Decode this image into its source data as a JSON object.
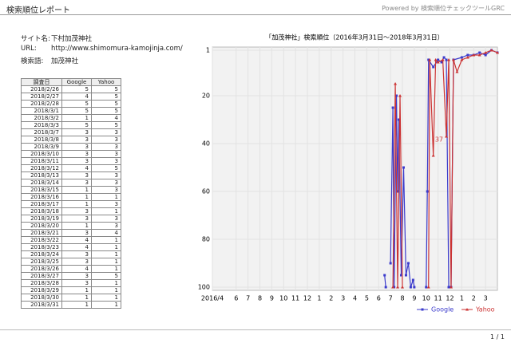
{
  "header": {
    "title": "検索順位レポート",
    "powered": "Powered by 検索順位チェックツールGRC"
  },
  "info": [
    [
      "サイト名:",
      "下村加茂神社"
    ],
    [
      "URL:",
      "http://www.shimomura-kamojinja.com/"
    ],
    [
      "検索語:",
      "加茂神社"
    ]
  ],
  "table": {
    "header": [
      "調査日",
      "Google",
      "Yahoo"
    ],
    "rows": [
      [
        "2018/2/26",
        5,
        5
      ],
      [
        "2018/2/27",
        4,
        5
      ],
      [
        "2018/2/28",
        5,
        5
      ],
      [
        "2018/3/1",
        5,
        5
      ],
      [
        "2018/3/2",
        1,
        4
      ],
      [
        "2018/3/3",
        5,
        5
      ],
      [
        "2018/3/7",
        3,
        3
      ],
      [
        "2018/3/8",
        3,
        3
      ],
      [
        "2018/3/9",
        3,
        3
      ],
      [
        "2018/3/10",
        3,
        3
      ],
      [
        "2018/3/11",
        3,
        3
      ],
      [
        "2018/3/12",
        4,
        5
      ],
      [
        "2018/3/13",
        3,
        3
      ],
      [
        "2018/3/14",
        3,
        3
      ],
      [
        "2018/3/15",
        1,
        3
      ],
      [
        "2018/3/16",
        1,
        1
      ],
      [
        "2018/3/17",
        1,
        3
      ],
      [
        "2018/3/18",
        3,
        1
      ],
      [
        "2018/3/19",
        3,
        3
      ],
      [
        "2018/3/20",
        1,
        3
      ],
      [
        "2018/3/21",
        3,
        4
      ],
      [
        "2018/3/22",
        4,
        1
      ],
      [
        "2018/3/23",
        4,
        1
      ],
      [
        "2018/3/24",
        3,
        1
      ],
      [
        "2018/3/25",
        3,
        1
      ],
      [
        "2018/3/26",
        4,
        1
      ],
      [
        "2018/3/27",
        3,
        5
      ],
      [
        "2018/3/28",
        3,
        1
      ],
      [
        "2018/3/29",
        1,
        1
      ],
      [
        "2018/3/30",
        1,
        1
      ],
      [
        "2018/3/31",
        1,
        1
      ]
    ]
  },
  "chart_data": {
    "type": "line",
    "title": "「加茂神社」検索順位（2016年3月31日～2018年3月31日）",
    "xlim": [
      0,
      24
    ],
    "ylim": [
      100,
      1
    ],
    "grid": true,
    "xticks": [
      {
        "value": 0,
        "label": "2016/4"
      },
      {
        "value": 2,
        "label": "6"
      },
      {
        "value": 3,
        "label": "7"
      },
      {
        "value": 4,
        "label": "8"
      },
      {
        "value": 5,
        "label": "9"
      },
      {
        "value": 6,
        "label": "10"
      },
      {
        "value": 7,
        "label": "11"
      },
      {
        "value": 8,
        "label": "12"
      },
      {
        "value": 9,
        "label": "1"
      },
      {
        "value": 10,
        "label": "2"
      },
      {
        "value": 11,
        "label": "3"
      },
      {
        "value": 12,
        "label": "4"
      },
      {
        "value": 13,
        "label": "5"
      },
      {
        "value": 14,
        "label": "6"
      },
      {
        "value": 15,
        "label": "7"
      },
      {
        "value": 16,
        "label": "8"
      },
      {
        "value": 17,
        "label": "9"
      },
      {
        "value": 18,
        "label": "10"
      },
      {
        "value": 19,
        "label": "11"
      },
      {
        "value": 20,
        "label": "12"
      },
      {
        "value": 21,
        "label": "1"
      },
      {
        "value": 22,
        "label": "2"
      },
      {
        "value": 23,
        "label": "3"
      }
    ],
    "yticks": [
      1,
      20,
      40,
      60,
      80,
      100
    ],
    "series": [
      {
        "name": "Google",
        "color": "#3b3bcc",
        "marker": "square",
        "x": [
          14.5,
          14.6,
          null,
          15.0,
          15.2,
          15.3,
          15.5,
          15.6,
          15.7,
          15.9,
          16.1,
          16.3,
          16.5,
          16.7,
          16.9,
          17.0,
          null,
          18.0,
          18.1,
          18.2,
          18.6,
          19.0,
          19.3,
          19.5,
          19.7,
          19.9,
          20.1,
          20.3,
          21.0,
          21.5,
          22.0,
          22.5,
          23.0,
          23.5,
          24.0
        ],
        "values": [
          95,
          100,
          null,
          90,
          25,
          100,
          20,
          60,
          30,
          95,
          50,
          95,
          90,
          100,
          97,
          100,
          null,
          100,
          60,
          5,
          8,
          5,
          6,
          4,
          5,
          100,
          100,
          5,
          4,
          3,
          3,
          2,
          3,
          1,
          2
        ]
      },
      {
        "name": "Yahoo",
        "color": "#cc3333",
        "marker": "triangle",
        "x": [
          15.2,
          15.4,
          15.6,
          15.8,
          16.0,
          null,
          18.2,
          18.3,
          18.6,
          18.8,
          19.0,
          19.4,
          19.7,
          19.9,
          20.1,
          20.3,
          20.6,
          21.0,
          21.5,
          22.0,
          22.5,
          23.0,
          23.5,
          24.0
        ],
        "values": [
          100,
          15,
          100,
          20,
          100,
          null,
          100,
          5,
          45,
          5,
          6,
          5,
          37,
          5,
          100,
          5,
          10,
          5,
          4,
          3,
          3,
          2,
          1,
          2
        ],
        "value_labels": [
          null,
          null,
          null,
          null,
          null,
          null,
          null,
          null,
          null,
          null,
          null,
          null,
          "37",
          null,
          null,
          null,
          null,
          null,
          null,
          null,
          null,
          null,
          null,
          null
        ]
      }
    ]
  }
}
